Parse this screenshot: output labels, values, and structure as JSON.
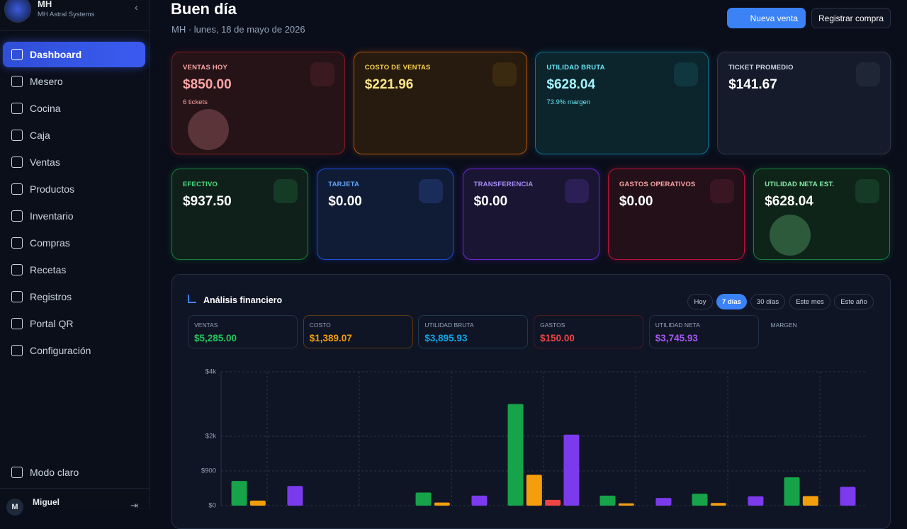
{
  "sidebar": {
    "brand": {
      "title": "MH",
      "subtitle": "MH Astral Systems"
    },
    "nav": [
      "Dashboard",
      "Mesero",
      "Cocina",
      "Caja",
      "Ventas",
      "Productos",
      "Inventario",
      "Compras",
      "Recetas",
      "Registros",
      "Portal QR",
      "Configuración"
    ],
    "theme_toggle": "Modo claro",
    "user": {
      "initial": "M",
      "name": "Miguel"
    }
  },
  "header": {
    "title": "Buen día",
    "subtitle": "MH · lunes, 18 de mayo de 2026",
    "primary_button": "Nueva venta",
    "secondary_button": "Registrar compra"
  },
  "kpi_row_1": [
    {
      "label": "VENTAS HOY",
      "value": "$850.00",
      "note": "6 tickets"
    },
    {
      "label": "COSTO DE VENTAS",
      "value": "$221.96"
    },
    {
      "label": "UTILIDAD BRUTA",
      "value": "$628.04",
      "note": "73.9% margen"
    },
    {
      "label": "TICKET PROMEDIO",
      "value": "$141.67"
    }
  ],
  "kpi_row_2": [
    {
      "label": "EFECTIVO",
      "value": "$937.50"
    },
    {
      "label": "TARJETA",
      "value": "$0.00"
    },
    {
      "label": "TRANSFERENCIA",
      "value": "$0.00"
    },
    {
      "label": "GASTOS OPERATIVOS",
      "value": "$0.00"
    },
    {
      "label": "UTILIDAD NETA EST.",
      "value": "$628.04"
    }
  ],
  "analysis": {
    "title": "Análisis financiero",
    "ranges": [
      "Hoy",
      "7 días",
      "30 días",
      "Este mes",
      "Este año"
    ],
    "summary": [
      {
        "label": "VENTAS",
        "value": "$5,285.00"
      },
      {
        "label": "COSTO",
        "value": "$1,389.07"
      },
      {
        "label": "UTILIDAD BRUTA",
        "value": "$3,895.93"
      },
      {
        "label": "GASTOS",
        "value": "$150.00"
      },
      {
        "label": "UTILIDAD NETA",
        "value": "$3,745.93"
      },
      {
        "label": "MARGEN"
      }
    ]
  },
  "chart_data": {
    "type": "bar",
    "categories": [
      null,
      null,
      null,
      null,
      null,
      null,
      null
    ],
    "series": [
      {
        "name": "Ventas",
        "color": "#16a34a",
        "values": [
          640,
          0,
          340,
          3000,
          260,
          310,
          735
        ]
      },
      {
        "name": "Costo",
        "color": "#f59e0b",
        "values": [
          130,
          0,
          80,
          800,
          60,
          70,
          249.07
        ]
      },
      {
        "name": "Gastos",
        "color": "#ef4444",
        "values": [
          0,
          0,
          0,
          150,
          0,
          0,
          0
        ]
      },
      {
        "name": "Utilidad neta",
        "color": "#7c3aed",
        "values": [
          510,
          0,
          260,
          2050,
          200,
          240,
          485.93
        ]
      }
    ],
    "ylim": [
      0,
      4000
    ],
    "yticks": [
      {
        "value": 0,
        "label": "$0"
      },
      {
        "value": 900,
        "label": "$900"
      },
      {
        "value": 2000,
        "label": "$2k"
      },
      {
        "value": 4000,
        "label": "$4k"
      }
    ],
    "grid": true
  }
}
